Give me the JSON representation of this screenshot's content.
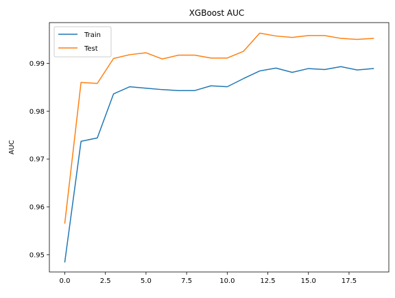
{
  "chart_data": {
    "type": "line",
    "title": "XGBoost AUC",
    "xlabel": "",
    "ylabel": "AUC",
    "xlim": [
      -0.95,
      19.95
    ],
    "ylim": [
      0.9464,
      0.9985
    ],
    "x": [
      0,
      1,
      2,
      3,
      4,
      5,
      6,
      7,
      8,
      9,
      10,
      11,
      12,
      13,
      14,
      15,
      16,
      17,
      18,
      19
    ],
    "series": [
      {
        "name": "Train",
        "color": "#1f77b4",
        "values": [
          0.9485,
          0.9737,
          0.9744,
          0.9836,
          0.9851,
          0.9848,
          0.9845,
          0.9843,
          0.9843,
          0.9853,
          0.9851,
          0.9868,
          0.9884,
          0.989,
          0.9881,
          0.9889,
          0.9887,
          0.9893,
          0.9886,
          0.9889
        ]
      },
      {
        "name": "Test",
        "color": "#ff7f0e",
        "values": [
          0.9566,
          0.986,
          0.9858,
          0.991,
          0.9918,
          0.9922,
          0.9909,
          0.9917,
          0.9917,
          0.9911,
          0.9911,
          0.9925,
          0.9963,
          0.9957,
          0.9954,
          0.9958,
          0.9958,
          0.9952,
          0.995,
          0.9952
        ]
      }
    ],
    "x_ticks": [
      "0.0",
      "2.5",
      "5.0",
      "7.5",
      "10.0",
      "12.5",
      "15.0",
      "17.5"
    ],
    "y_ticks": [
      "0.95",
      "0.96",
      "0.97",
      "0.98",
      "0.99"
    ],
    "grid": false,
    "legend_position": "upper-left"
  }
}
